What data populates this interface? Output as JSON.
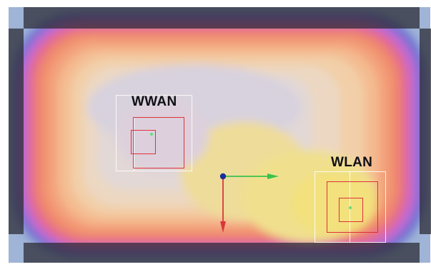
{
  "scene": {
    "zones": [
      {
        "id": "wwan",
        "label": "WWAN"
      },
      {
        "id": "wlan",
        "label": "WLAN"
      }
    ],
    "colors": {
      "frame": "#2a2a32",
      "zone_outline": "#ffffff",
      "zone_red": "#e0303a",
      "origin_dot": "#1b2f9a",
      "axis_x": "#39c24c",
      "axis_y": "#d8363a"
    },
    "icons": [
      "origin-handle-icon",
      "x-axis-arrow-icon",
      "y-axis-arrow-icon"
    ]
  }
}
